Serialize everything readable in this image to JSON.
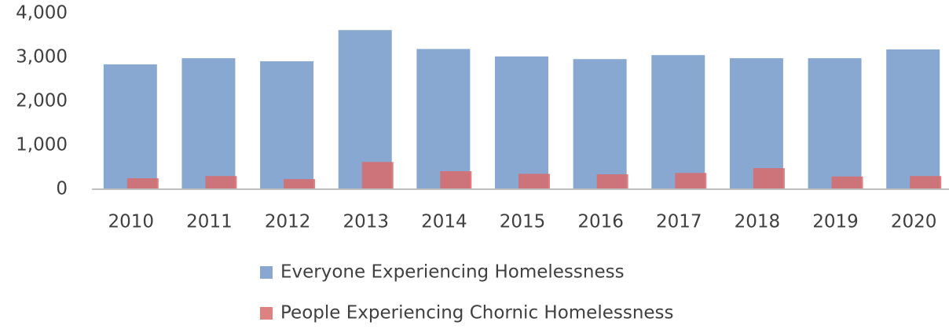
{
  "chart_data": {
    "type": "bar",
    "categories": [
      "2010",
      "2011",
      "2012",
      "2013",
      "2014",
      "2015",
      "2016",
      "2017",
      "2018",
      "2019",
      "2020"
    ],
    "series": [
      {
        "name": "Everyone Experiencing Homelessness",
        "color": "#7399c9",
        "values": [
          2840,
          2980,
          2910,
          3620,
          3190,
          3020,
          2960,
          3050,
          2980,
          2980,
          3180
        ]
      },
      {
        "name": "People Experiencing Chornic Homelessness",
        "color": "#d96a6b",
        "values": [
          250,
          300,
          230,
          620,
          410,
          350,
          340,
          370,
          480,
          290,
          300
        ]
      }
    ],
    "ylim": [
      0,
      4000
    ],
    "yticks": [
      0,
      {
        "value": 1000,
        "label": "1,000"
      },
      {
        "value": 2000,
        "label": "2,000"
      },
      {
        "value": 3000,
        "label": "3,000"
      },
      {
        "value": 4000,
        "label": "4,000"
      }
    ],
    "legend": "bottom"
  }
}
